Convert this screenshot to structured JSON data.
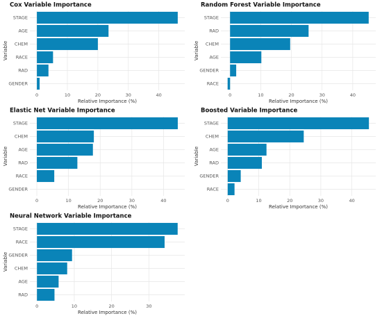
{
  "chart_data": [
    {
      "type": "bar",
      "orientation": "horizontal",
      "title": "Cox Variable Importance",
      "xlabel": "Relative Importance (%)",
      "ylabel": "Variable",
      "categories": [
        "STAGE",
        "AGE",
        "CHEM",
        "RACE",
        "RAD",
        "GENDER"
      ],
      "values": [
        46.2,
        23.5,
        20,
        5.3,
        3.8,
        0.9
      ],
      "xlim": [
        -2.3,
        48.5
      ],
      "xticks": [
        0,
        10,
        20,
        30,
        40
      ],
      "color": "#0a84b8",
      "grid": true
    },
    {
      "type": "bar",
      "orientation": "horizontal",
      "title": "Random Forest Variable Importance",
      "xlabel": "Relative Importance (%)",
      "ylabel": "Variable",
      "categories": [
        "STAGE",
        "RAD",
        "CHEM",
        "AGE",
        "GENDER",
        "RACE"
      ],
      "values": [
        45.2,
        25.6,
        19.6,
        10.2,
        2,
        -0.8
      ],
      "xlim": [
        -3,
        47.5
      ],
      "xticks": [
        0,
        10,
        20,
        30,
        40
      ],
      "color": "#0a84b8",
      "grid": true
    },
    {
      "type": "bar",
      "orientation": "horizontal",
      "title": "Elastic Net Variable Importance",
      "xlabel": "Relative Importance (%)",
      "ylabel": "Variable",
      "categories": [
        "STAGE",
        "CHEM",
        "AGE",
        "RAD",
        "RACE",
        "GENDER"
      ],
      "values": [
        44.5,
        18,
        17.7,
        12.8,
        5.5,
        0
      ],
      "xlim": [
        -2.2,
        46.7
      ],
      "xticks": [
        0,
        10,
        20,
        30,
        40
      ],
      "color": "#0a84b8",
      "grid": true
    },
    {
      "type": "bar",
      "orientation": "horizontal",
      "title": "Boosted Variable Importance",
      "xlabel": "Relative Importance (%)",
      "ylabel": "Variable",
      "categories": [
        "STAGE",
        "CHEM",
        "AGE",
        "RAD",
        "GENDER",
        "RACE"
      ],
      "values": [
        45.5,
        24.5,
        12.5,
        11,
        4.2,
        2.2
      ],
      "xlim": [
        -2.2,
        47.7
      ],
      "xticks": [
        0,
        10,
        20,
        30,
        40
      ],
      "color": "#0a84b8",
      "grid": true
    },
    {
      "type": "bar",
      "orientation": "horizontal",
      "title": "Neural Network Variable Importance",
      "xlabel": "Relative Importance (%)",
      "ylabel": "Variable",
      "categories": [
        "STAGE",
        "RACE",
        "GENDER",
        "CHEM",
        "AGE",
        "RAD"
      ],
      "values": [
        37.7,
        34.2,
        9.4,
        8.1,
        5.8,
        4.7
      ],
      "xlim": [
        -1.9,
        39.6
      ],
      "xticks": [
        0,
        10,
        20,
        30
      ],
      "color": "#0a84b8",
      "grid": true
    }
  ]
}
